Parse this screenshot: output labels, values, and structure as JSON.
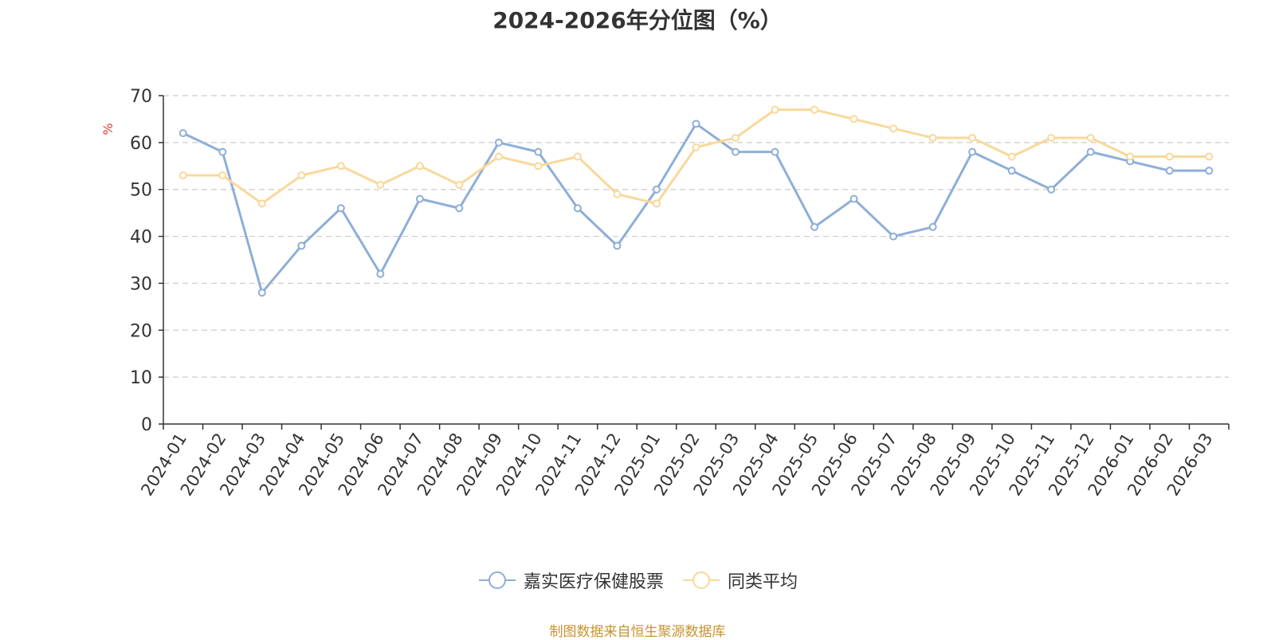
{
  "chart_data": {
    "type": "line",
    "title": "2024-2026年分位图（%）",
    "ylabel": "%",
    "xlabel": "",
    "ylim": [
      0,
      70
    ],
    "yticks": [
      0,
      10,
      20,
      30,
      40,
      50,
      60,
      70
    ],
    "grid": true,
    "legend_position": "bottom",
    "categories": [
      "2024-01",
      "2024-02",
      "2024-03",
      "2024-04",
      "2024-05",
      "2024-06",
      "2024-07",
      "2024-08",
      "2024-09",
      "2024-10",
      "2024-11",
      "2024-12",
      "2025-01",
      "2025-02",
      "2025-03",
      "2025-04",
      "2025-05",
      "2025-06",
      "2025-07",
      "2025-08",
      "2025-09",
      "2025-10",
      "2025-11",
      "2025-12",
      "2026-01",
      "2026-02",
      "2026-03"
    ],
    "series": [
      {
        "name": "嘉实医疗保健股票",
        "color": "#8eaed8",
        "values": [
          62,
          58,
          28,
          38,
          46,
          32,
          48,
          46,
          60,
          58,
          46,
          38,
          50,
          64,
          58,
          58,
          42,
          48,
          40,
          42,
          58,
          54,
          50,
          58,
          56,
          54,
          54
        ]
      },
      {
        "name": "同类平均",
        "color": "#f9d89a",
        "values": [
          53,
          53,
          47,
          53,
          55,
          51,
          55,
          51,
          57,
          55,
          57,
          49,
          47,
          59,
          61,
          67,
          67,
          65,
          63,
          61,
          61,
          57,
          61,
          61,
          57,
          57,
          57
        ]
      }
    ]
  },
  "colors": {
    "axis": "#333333",
    "grid": "#cccccc",
    "ylabel": "#e53935",
    "source": "#c8932f"
  },
  "source_note": "制图数据来自恒生聚源数据库"
}
